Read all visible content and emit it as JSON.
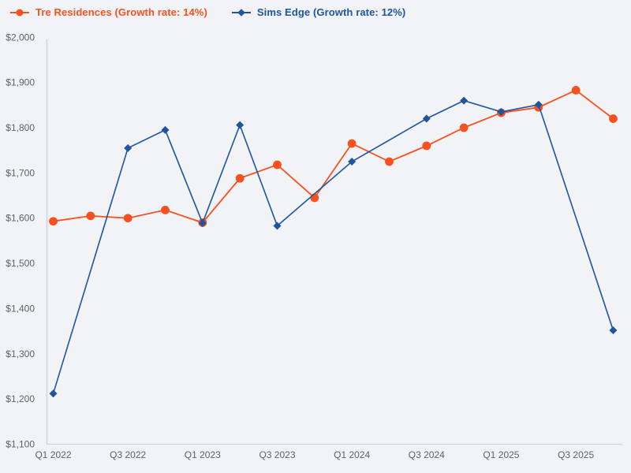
{
  "legend": [
    {
      "label": "Tre Residences (Growth rate: 14%)",
      "color": "#f8501e",
      "marker": "circle"
    },
    {
      "label": "Sims Edge (Growth rate: 12%)",
      "color": "#1f549e",
      "marker": "diamond"
    }
  ],
  "colors": {
    "background": "#f1f3f6",
    "axis_line": "#c8d2e2",
    "tick_label": "#5d6269",
    "series_tre_residences": "#f8501e",
    "series_sims_edge": "#1f549e"
  },
  "chart_data": {
    "type": "line",
    "x": [
      "Q1 2022",
      "Q2 2022",
      "Q3 2022",
      "Q4 2022",
      "Q1 2023",
      "Q2 2023",
      "Q3 2023",
      "Q4 2023",
      "Q1 2024",
      "Q2 2024",
      "Q3 2024",
      "Q4 2024",
      "Q1 2025",
      "Q2 2025",
      "Q3 2025",
      "Q4 2025"
    ],
    "x_tick_labels_shown": [
      "Q1 2022",
      "Q3 2022",
      "Q1 2023",
      "Q3 2023",
      "Q1 2024",
      "Q3 2024",
      "Q1 2025",
      "Q3 2025"
    ],
    "x_tick_every": 2,
    "series": [
      {
        "name": "Tre Residences (Growth rate: 14%)",
        "color": "#f8501e",
        "marker": "circle",
        "values": [
          1593,
          1605,
          1600,
          1618,
          1590,
          1688,
          1718,
          1645,
          1765,
          1725,
          1760,
          1800,
          1833,
          1845,
          1883,
          1820
        ]
      },
      {
        "name": "Sims Edge (Growth rate: 12%)",
        "color": "#1f549e",
        "marker": "diamond",
        "values": [
          1212,
          null,
          1755,
          1795,
          1589,
          1806,
          1583,
          null,
          1725,
          null,
          1820,
          1860,
          1835,
          1851,
          null,
          1352
        ]
      }
    ],
    "ylim": [
      1100,
      2000
    ],
    "y_ticks": [
      1100,
      1200,
      1300,
      1400,
      1500,
      1600,
      1700,
      1800,
      1900,
      2000
    ],
    "y_tick_labels": [
      "$1,100",
      "$1,200",
      "$1,300",
      "$1,400",
      "$1,500",
      "$1,600",
      "$1,700",
      "$1,800",
      "$1,900",
      "$2,000"
    ],
    "grid": false,
    "legend_position": "top-left",
    "title": "",
    "xlabel": "",
    "ylabel": ""
  }
}
